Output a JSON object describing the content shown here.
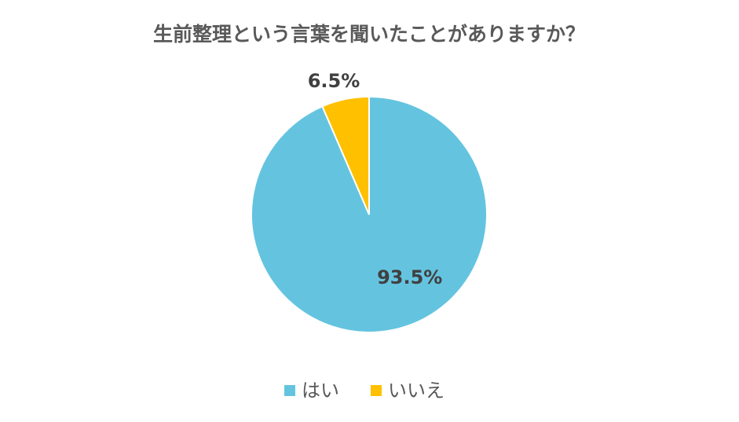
{
  "chart_data": {
    "type": "pie",
    "title": "生前整理という言葉を聞いたことがありますか？",
    "categories": [
      "はい",
      "いいえ"
    ],
    "values": [
      93.5,
      6.5
    ],
    "value_labels": [
      "93.5%",
      "6.5%"
    ],
    "colors": [
      "#64c4e0",
      "#ffc000"
    ],
    "legend": "bottom"
  }
}
